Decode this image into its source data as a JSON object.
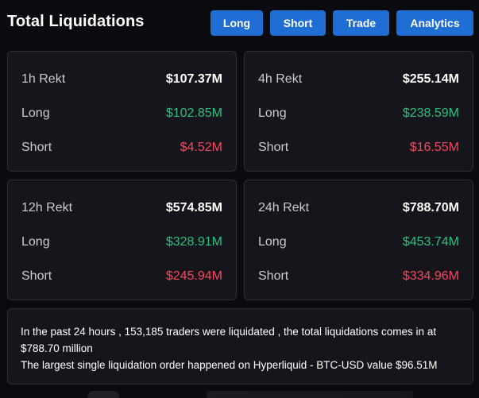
{
  "header": {
    "title": "Total Liquidations",
    "buttons": {
      "long": "Long",
      "short": "Short",
      "trade": "Trade",
      "analytics": "Analytics"
    }
  },
  "cards": [
    {
      "period_label": "1h Rekt",
      "total": "$107.37M",
      "long_label": "Long",
      "long": "$102.85M",
      "short_label": "Short",
      "short": "$4.52M"
    },
    {
      "period_label": "4h Rekt",
      "total": "$255.14M",
      "long_label": "Long",
      "long": "$238.59M",
      "short_label": "Short",
      "short": "$16.55M"
    },
    {
      "period_label": "12h Rekt",
      "total": "$574.85M",
      "long_label": "Long",
      "long": "$328.91M",
      "short_label": "Short",
      "short": "$245.94M"
    },
    {
      "period_label": "24h Rekt",
      "total": "$788.70M",
      "long_label": "Long",
      "long": "$453.74M",
      "short_label": "Short",
      "short": "$334.96M"
    }
  ],
  "summary": {
    "line1": "In the past 24 hours , 153,185 traders were liquidated , the total liquidations comes in at $788.70 million",
    "line2": "The largest single liquidation order happened on Hyperliquid - BTC-USD value $96.51M"
  },
  "colors": {
    "button": "#1f6ed4",
    "long_value": "#2ebd85",
    "short_value": "#f6465d",
    "card_bg": "#14161b",
    "page_bg": "#0a0b0e"
  }
}
